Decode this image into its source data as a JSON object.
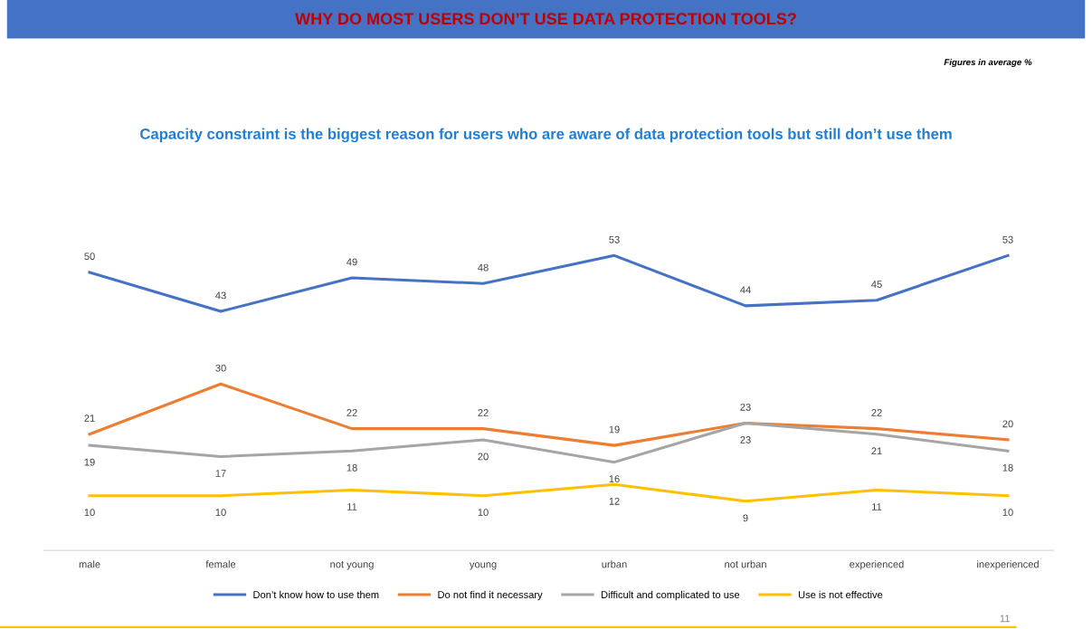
{
  "chart_data": {
    "type": "line",
    "title": "WHY DO MOST USERS DON’T USE DATA PROTECTION TOOLS?",
    "subtitle": "Capacity constraint is the biggest reason for users who are aware of data protection tools but still don’t use them",
    "annotations": [
      "Figures in average %",
      "11"
    ],
    "categories": [
      "male",
      "female",
      "not young",
      "young",
      "urban",
      "not urban",
      "experienced",
      "inexperienced"
    ],
    "series": [
      {
        "name": "Don’t know how to use them",
        "color": "#4472c4",
        "values": [
          50,
          43,
          49,
          48,
          53,
          44,
          45,
          53
        ]
      },
      {
        "name": "Do not find it necessary",
        "color": "#ed7d31",
        "values": [
          21,
          30,
          22,
          22,
          19,
          23,
          22,
          20
        ]
      },
      {
        "name": "Difficult and complicated to use",
        "color": "#a5a5a5",
        "values": [
          19,
          17,
          18,
          20,
          16,
          23,
          21,
          18
        ]
      },
      {
        "name": "Use is not effective",
        "color": "#ffc000",
        "values": [
          10,
          10,
          11,
          10,
          12,
          9,
          11,
          10
        ]
      }
    ],
    "data_labels": true,
    "legend": "bottom",
    "grid": false,
    "marker": "none",
    "line_style": "solid"
  }
}
